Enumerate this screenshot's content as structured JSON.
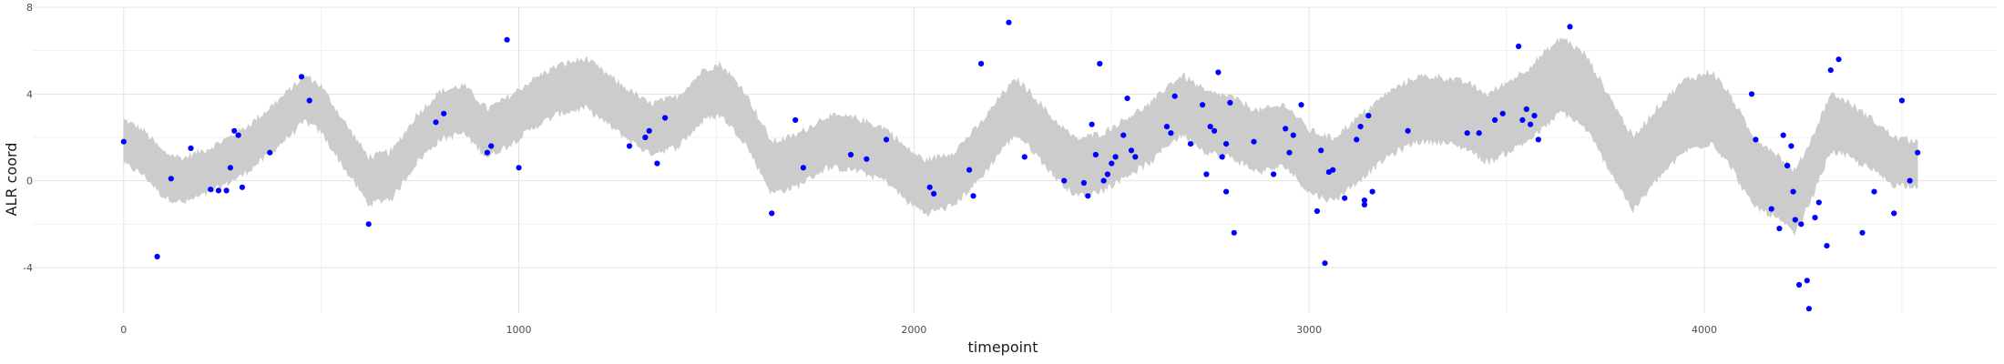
{
  "chart_data": {
    "type": "scatter",
    "xlabel": "timepoint",
    "ylabel": "ALR coord",
    "xlim": [
      -230,
      4740
    ],
    "ylim": [
      -6.1,
      8.0
    ],
    "x_ticks": [
      0,
      1000,
      2000,
      3000,
      4000
    ],
    "x_tick_labels": [
      "0",
      "1000",
      "2000",
      "3000",
      "4000"
    ],
    "y_ticks": [
      -4,
      0,
      4,
      8
    ],
    "y_tick_labels": [
      "-4",
      "0",
      "4",
      "8"
    ],
    "grid": true,
    "colors": {
      "band": "#cccccc",
      "points": "#0000ff",
      "grid": "#e3e3e3"
    },
    "band_center": [
      [
        0,
        1.8
      ],
      [
        50,
        1.3
      ],
      [
        100,
        0.3
      ],
      [
        150,
        0.0
      ],
      [
        220,
        0.5
      ],
      [
        300,
        1.3
      ],
      [
        350,
        2.0
      ],
      [
        400,
        2.8
      ],
      [
        460,
        3.8
      ],
      [
        500,
        3.3
      ],
      [
        560,
        1.6
      ],
      [
        620,
        0.0
      ],
      [
        680,
        0.3
      ],
      [
        740,
        1.9
      ],
      [
        800,
        3.0
      ],
      [
        860,
        3.3
      ],
      [
        920,
        2.2
      ],
      [
        970,
        2.7
      ],
      [
        1040,
        3.6
      ],
      [
        1100,
        4.2
      ],
      [
        1170,
        4.5
      ],
      [
        1250,
        3.4
      ],
      [
        1330,
        2.4
      ],
      [
        1400,
        2.7
      ],
      [
        1470,
        4.0
      ],
      [
        1510,
        4.2
      ],
      [
        1570,
        3.0
      ],
      [
        1640,
        0.6
      ],
      [
        1700,
        0.9
      ],
      [
        1780,
        1.8
      ],
      [
        1850,
        1.7
      ],
      [
        1930,
        1.2
      ],
      [
        1980,
        0.3
      ],
      [
        2030,
        -0.3
      ],
      [
        2100,
        0.1
      ],
      [
        2170,
        1.4
      ],
      [
        2230,
        2.9
      ],
      [
        2260,
        3.4
      ],
      [
        2300,
        2.7
      ],
      [
        2350,
        1.6
      ],
      [
        2410,
        0.6
      ],
      [
        2480,
        0.9
      ],
      [
        2550,
        1.7
      ],
      [
        2600,
        2.2
      ],
      [
        2640,
        3.0
      ],
      [
        2680,
        3.5
      ],
      [
        2740,
        2.7
      ],
      [
        2800,
        2.5
      ],
      [
        2870,
        1.8
      ],
      [
        2940,
        2.1
      ],
      [
        3000,
        0.9
      ],
      [
        3060,
        0.5
      ],
      [
        3120,
        1.4
      ],
      [
        3200,
        2.6
      ],
      [
        3270,
        3.3
      ],
      [
        3330,
        3.3
      ],
      [
        3400,
        3.0
      ],
      [
        3450,
        2.4
      ],
      [
        3500,
        2.9
      ],
      [
        3560,
        3.6
      ],
      [
        3640,
        4.9
      ],
      [
        3700,
        4.1
      ],
      [
        3760,
        2.2
      ],
      [
        3820,
        0.3
      ],
      [
        3880,
        1.7
      ],
      [
        3950,
        3.0
      ],
      [
        4020,
        3.4
      ],
      [
        4070,
        2.2
      ],
      [
        4120,
        0.5
      ],
      [
        4180,
        -0.2
      ],
      [
        4230,
        -1.0
      ],
      [
        4270,
        0.5
      ],
      [
        4320,
        2.7
      ],
      [
        4360,
        2.4
      ],
      [
        4430,
        1.6
      ],
      [
        4480,
        0.9
      ],
      [
        4540,
        0.8
      ]
    ],
    "band_half_width": [
      [
        0,
        1.0
      ],
      [
        2000,
        1.2
      ],
      [
        2900,
        1.4
      ],
      [
        3400,
        1.5
      ],
      [
        3600,
        1.7
      ],
      [
        4100,
        1.6
      ],
      [
        4540,
        1.0
      ]
    ],
    "points": [
      [
        0,
        1.8
      ],
      [
        85,
        -3.5
      ],
      [
        120,
        0.1
      ],
      [
        170,
        1.5
      ],
      [
        220,
        -0.4
      ],
      [
        240,
        -0.45
      ],
      [
        260,
        -0.45
      ],
      [
        270,
        0.6
      ],
      [
        280,
        2.3
      ],
      [
        290,
        2.1
      ],
      [
        300,
        -0.3
      ],
      [
        370,
        1.3
      ],
      [
        450,
        4.8
      ],
      [
        470,
        3.7
      ],
      [
        620,
        -2.0
      ],
      [
        790,
        2.7
      ],
      [
        810,
        3.1
      ],
      [
        920,
        1.3
      ],
      [
        930,
        1.6
      ],
      [
        970,
        6.5
      ],
      [
        1000,
        0.6
      ],
      [
        1280,
        1.6
      ],
      [
        1320,
        2.0
      ],
      [
        1330,
        2.3
      ],
      [
        1350,
        0.8
      ],
      [
        1370,
        2.9
      ],
      [
        1640,
        -1.5
      ],
      [
        1700,
        2.8
      ],
      [
        1720,
        0.6
      ],
      [
        1840,
        1.2
      ],
      [
        1880,
        1.0
      ],
      [
        1930,
        1.9
      ],
      [
        2040,
        -0.3
      ],
      [
        2050,
        -0.6
      ],
      [
        2140,
        0.5
      ],
      [
        2150,
        -0.7
      ],
      [
        2170,
        5.4
      ],
      [
        2240,
        7.3
      ],
      [
        2280,
        1.1
      ],
      [
        2380,
        0.0
      ],
      [
        2430,
        -0.1
      ],
      [
        2440,
        -0.7
      ],
      [
        2450,
        2.6
      ],
      [
        2460,
        1.2
      ],
      [
        2470,
        5.4
      ],
      [
        2480,
        0.0
      ],
      [
        2490,
        0.3
      ],
      [
        2500,
        0.8
      ],
      [
        2510,
        1.1
      ],
      [
        2530,
        2.1
      ],
      [
        2540,
        3.8
      ],
      [
        2550,
        1.4
      ],
      [
        2560,
        1.1
      ],
      [
        2640,
        2.5
      ],
      [
        2650,
        2.2
      ],
      [
        2660,
        3.9
      ],
      [
        2700,
        1.7
      ],
      [
        2730,
        3.5
      ],
      [
        2740,
        0.3
      ],
      [
        2750,
        2.5
      ],
      [
        2760,
        2.3
      ],
      [
        2770,
        5.0
      ],
      [
        2780,
        1.1
      ],
      [
        2790,
        -0.5
      ],
      [
        2790,
        1.7
      ],
      [
        2800,
        3.6
      ],
      [
        2810,
        -2.4
      ],
      [
        2860,
        1.8
      ],
      [
        2910,
        0.3
      ],
      [
        2940,
        2.4
      ],
      [
        2950,
        1.3
      ],
      [
        2960,
        2.1
      ],
      [
        2980,
        3.5
      ],
      [
        3020,
        -1.4
      ],
      [
        3030,
        1.4
      ],
      [
        3040,
        -3.8
      ],
      [
        3050,
        0.4
      ],
      [
        3060,
        0.5
      ],
      [
        3090,
        -0.8
      ],
      [
        3120,
        1.9
      ],
      [
        3130,
        2.5
      ],
      [
        3140,
        -0.9
      ],
      [
        3140,
        -1.1
      ],
      [
        3150,
        3.0
      ],
      [
        3160,
        -0.5
      ],
      [
        3250,
        2.3
      ],
      [
        3400,
        2.2
      ],
      [
        3430,
        2.2
      ],
      [
        3470,
        2.8
      ],
      [
        3490,
        3.1
      ],
      [
        3530,
        6.2
      ],
      [
        3540,
        2.8
      ],
      [
        3550,
        3.3
      ],
      [
        3560,
        2.6
      ],
      [
        3570,
        3.0
      ],
      [
        3580,
        1.9
      ],
      [
        3660,
        7.1
      ],
      [
        4120,
        4.0
      ],
      [
        4130,
        1.9
      ],
      [
        4170,
        -1.3
      ],
      [
        4190,
        -2.2
      ],
      [
        4200,
        2.1
      ],
      [
        4210,
        0.7
      ],
      [
        4210,
        0.7
      ],
      [
        4220,
        1.6
      ],
      [
        4225,
        -0.5
      ],
      [
        4230,
        -1.8
      ],
      [
        4240,
        -4.8
      ],
      [
        4245,
        -2.0
      ],
      [
        4260,
        -4.6
      ],
      [
        4265,
        -5.9
      ],
      [
        4280,
        -1.7
      ],
      [
        4290,
        -1.0
      ],
      [
        4310,
        -3.0
      ],
      [
        4320,
        5.1
      ],
      [
        4340,
        5.6
      ],
      [
        4400,
        -2.4
      ],
      [
        4430,
        -0.5
      ],
      [
        4480,
        -1.5
      ],
      [
        4500,
        3.7
      ],
      [
        4520,
        0.0
      ],
      [
        4540,
        1.3
      ]
    ]
  }
}
